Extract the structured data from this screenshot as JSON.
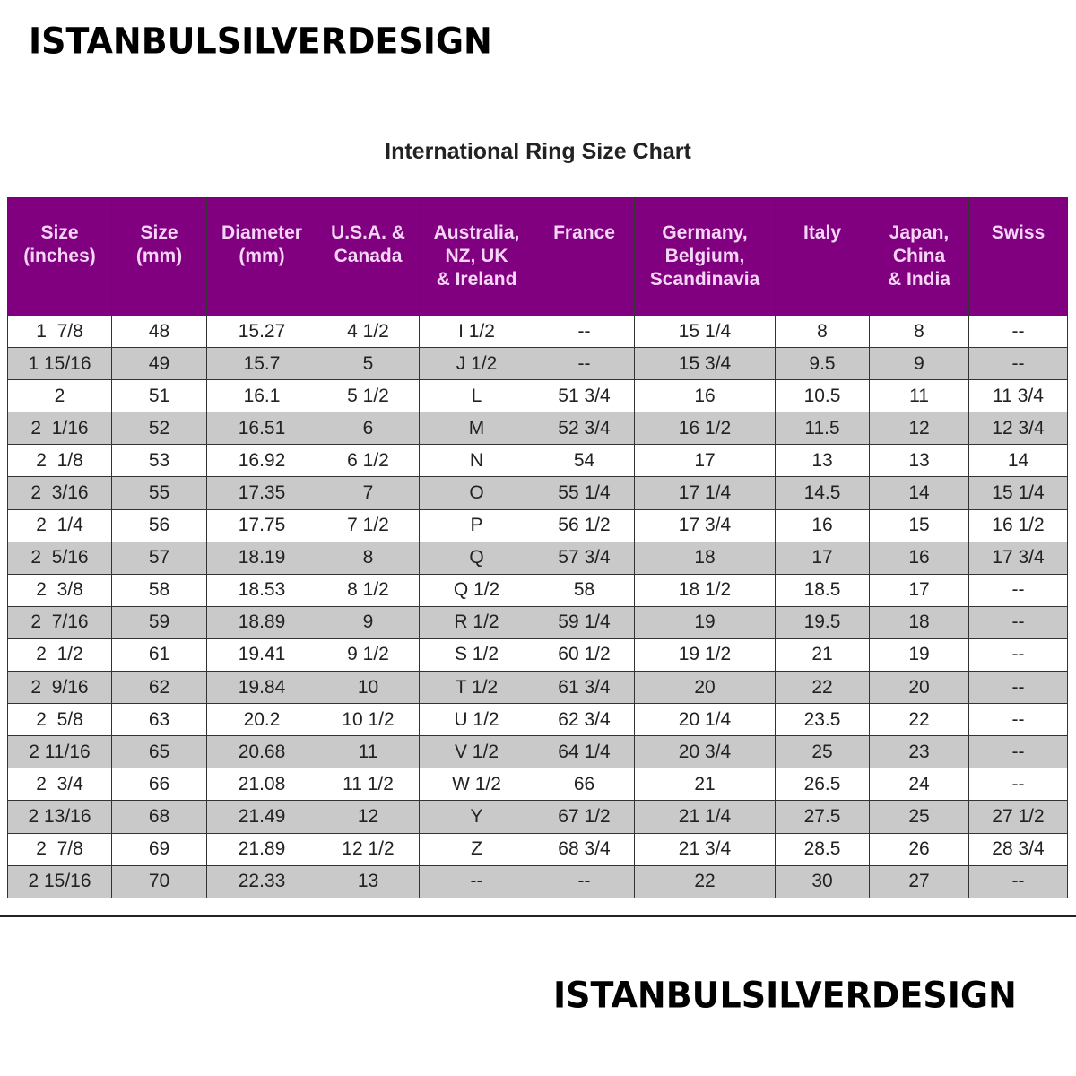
{
  "brand": "ISTANBULSILVERDESIGN",
  "title": "International Ring Size Chart",
  "colors": {
    "header_bg": "#800080",
    "header_text": "#f6d6f6",
    "alt_row": "#c9c9c9"
  },
  "columns": [
    "Size\n(inches)",
    "Size\n(mm)",
    "Diameter\n(mm)",
    "U.S.A. &\nCanada",
    "Australia,\nNZ, UK\n& Ireland",
    "France",
    "Germany,\nBelgium,\nScandinavia",
    "Italy",
    "Japan,\nChina\n& India",
    "Swiss"
  ],
  "rows": [
    [
      "1  7/8",
      "48",
      "15.27",
      "4 1/2",
      "I 1/2",
      "--",
      "15 1/4",
      "8",
      "8",
      "--"
    ],
    [
      "1 15/16",
      "49",
      "15.7",
      "5",
      "J 1/2",
      "--",
      "15 3/4",
      "9.5",
      "9",
      "--"
    ],
    [
      "2",
      "51",
      "16.1",
      "5 1/2",
      "L",
      "51 3/4",
      "16",
      "10.5",
      "11",
      "11 3/4"
    ],
    [
      "2  1/16",
      "52",
      "16.51",
      "6",
      "M",
      "52 3/4",
      "16 1/2",
      "11.5",
      "12",
      "12 3/4"
    ],
    [
      "2  1/8",
      "53",
      "16.92",
      "6 1/2",
      "N",
      "54",
      "17",
      "13",
      "13",
      "14"
    ],
    [
      "2  3/16",
      "55",
      "17.35",
      "7",
      "O",
      "55 1/4",
      "17 1/4",
      "14.5",
      "14",
      "15 1/4"
    ],
    [
      "2  1/4",
      "56",
      "17.75",
      "7 1/2",
      "P",
      "56 1/2",
      "17 3/4",
      "16",
      "15",
      "16 1/2"
    ],
    [
      "2  5/16",
      "57",
      "18.19",
      "8",
      "Q",
      "57 3/4",
      "18",
      "17",
      "16",
      "17 3/4"
    ],
    [
      "2  3/8",
      "58",
      "18.53",
      "8 1/2",
      "Q 1/2",
      "58",
      "18 1/2",
      "18.5",
      "17",
      "--"
    ],
    [
      "2  7/16",
      "59",
      "18.89",
      "9",
      "R 1/2",
      "59 1/4",
      "19",
      "19.5",
      "18",
      "--"
    ],
    [
      "2  1/2",
      "61",
      "19.41",
      "9 1/2",
      "S 1/2",
      "60 1/2",
      "19 1/2",
      "21",
      "19",
      "--"
    ],
    [
      "2  9/16",
      "62",
      "19.84",
      "10",
      "T 1/2",
      "61 3/4",
      "20",
      "22",
      "20",
      "--"
    ],
    [
      "2  5/8",
      "63",
      "20.2",
      "10 1/2",
      "U 1/2",
      "62 3/4",
      "20 1/4",
      "23.5",
      "22",
      "--"
    ],
    [
      "2 11/16",
      "65",
      "20.68",
      "11",
      "V 1/2",
      "64 1/4",
      "20 3/4",
      "25",
      "23",
      "--"
    ],
    [
      "2  3/4",
      "66",
      "21.08",
      "11 1/2",
      "W 1/2",
      "66",
      "21",
      "26.5",
      "24",
      "--"
    ],
    [
      "2 13/16",
      "68",
      "21.49",
      "12",
      "Y",
      "67 1/2",
      "21 1/4",
      "27.5",
      "25",
      "27 1/2"
    ],
    [
      "2  7/8",
      "69",
      "21.89",
      "12 1/2",
      "Z",
      "68 3/4",
      "21 3/4",
      "28.5",
      "26",
      "28 3/4"
    ],
    [
      "2 15/16",
      "70",
      "22.33",
      "13",
      "--",
      "--",
      "22",
      "30",
      "27",
      "--"
    ]
  ]
}
